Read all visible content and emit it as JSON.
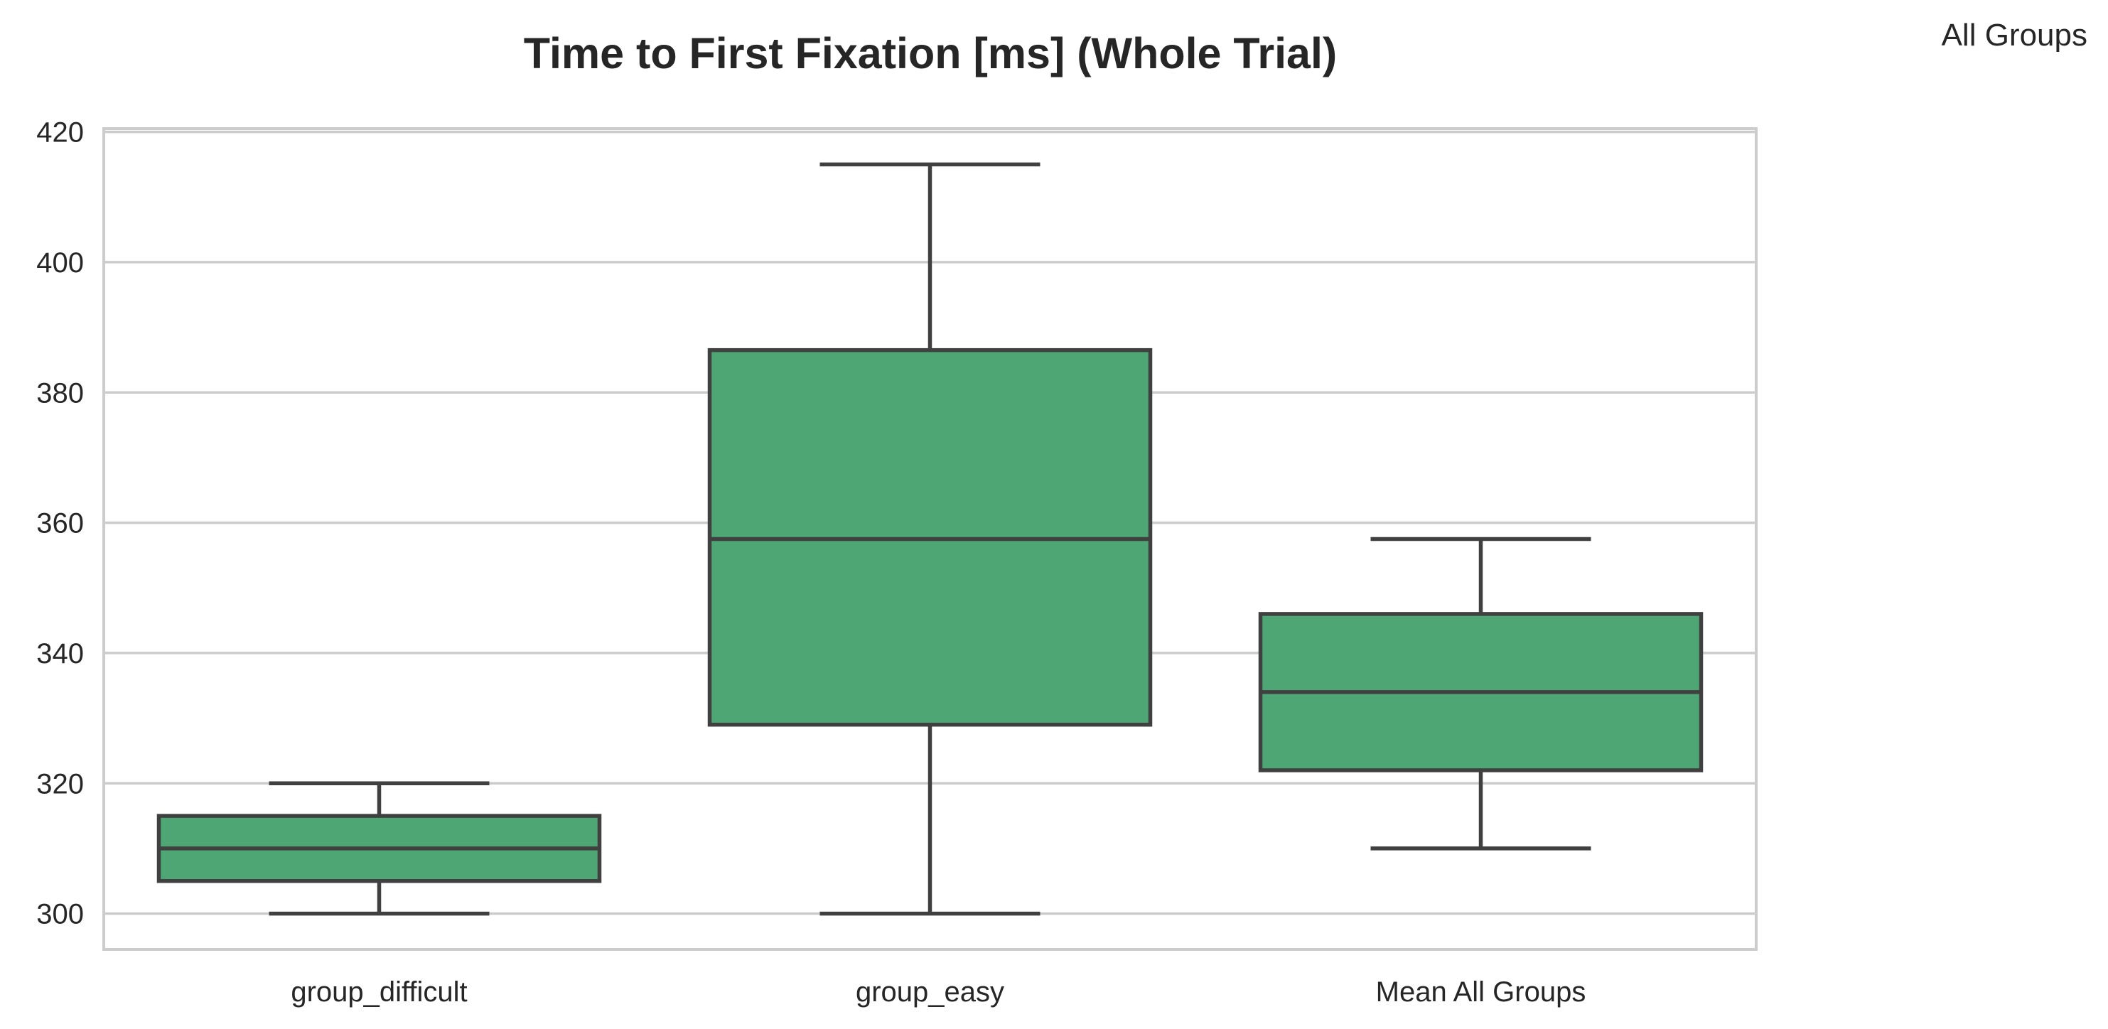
{
  "chart_data": {
    "type": "box",
    "title": "Time to First Fixation [ms] (Whole Trial)",
    "corner_label": "All Groups",
    "xlabel": "",
    "ylabel": "",
    "ylim": [
      294.5,
      420.5
    ],
    "yticks": [
      300,
      320,
      340,
      360,
      380,
      400,
      420
    ],
    "grid": "horizontal",
    "box_color": "#4da674",
    "line_color": "#404040",
    "grid_color": "#cccccc",
    "categories": [
      "group_difficult",
      "group_easy",
      "Mean All Groups"
    ],
    "boxes": [
      {
        "category": "group_difficult",
        "whisker_low": 300,
        "q1": 305,
        "median": 310,
        "q3": 315,
        "whisker_high": 320
      },
      {
        "category": "group_easy",
        "whisker_low": 300,
        "q1": 329,
        "median": 357.5,
        "q3": 386.5,
        "whisker_high": 415
      },
      {
        "category": "Mean All Groups",
        "whisker_low": 310,
        "q1": 322,
        "median": 334,
        "q3": 346,
        "whisker_high": 357.5
      }
    ]
  }
}
